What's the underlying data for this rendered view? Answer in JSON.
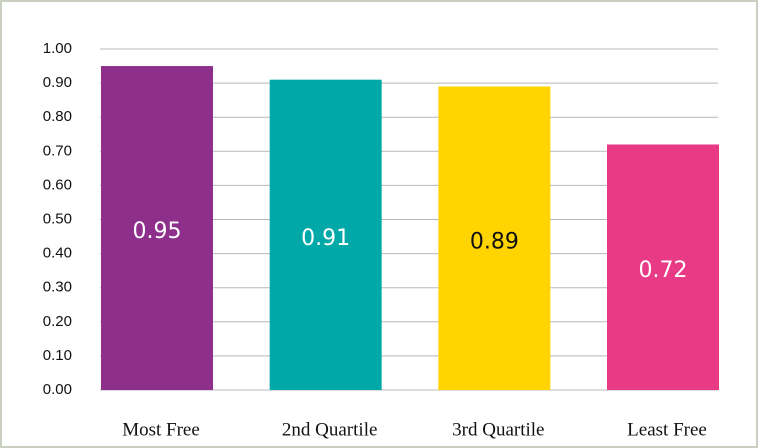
{
  "chart_data": {
    "type": "bar",
    "categories": [
      "Most Free",
      "2nd Quartile",
      "3rd Quartile",
      "Least Free"
    ],
    "values": [
      0.95,
      0.91,
      0.89,
      0.72
    ],
    "colors": [
      "#8e2f8c",
      "#00a9a8",
      "#ffd400",
      "#e83a85"
    ],
    "label_colors": [
      "#ffffff",
      "#ffffff",
      "#111111",
      "#ffffff"
    ],
    "ylim": [
      0,
      1
    ],
    "yticks": [
      {
        "value": 0,
        "label": "0.00"
      },
      {
        "value": 0.1,
        "label": "0.10"
      },
      {
        "value": 0.2,
        "label": "0.20"
      },
      {
        "value": 0.3,
        "label": "0.30"
      },
      {
        "value": 0.4,
        "label": "0.40"
      },
      {
        "value": 0.5,
        "label": "0.50"
      },
      {
        "value": 0.6,
        "label": "0.60"
      },
      {
        "value": 0.7,
        "label": "0.70"
      },
      {
        "value": 0.8,
        "label": "0.80"
      },
      {
        "value": 0.9,
        "label": "0.90"
      },
      {
        "value": 1,
        "label": "1.00"
      }
    ],
    "grid": true
  }
}
